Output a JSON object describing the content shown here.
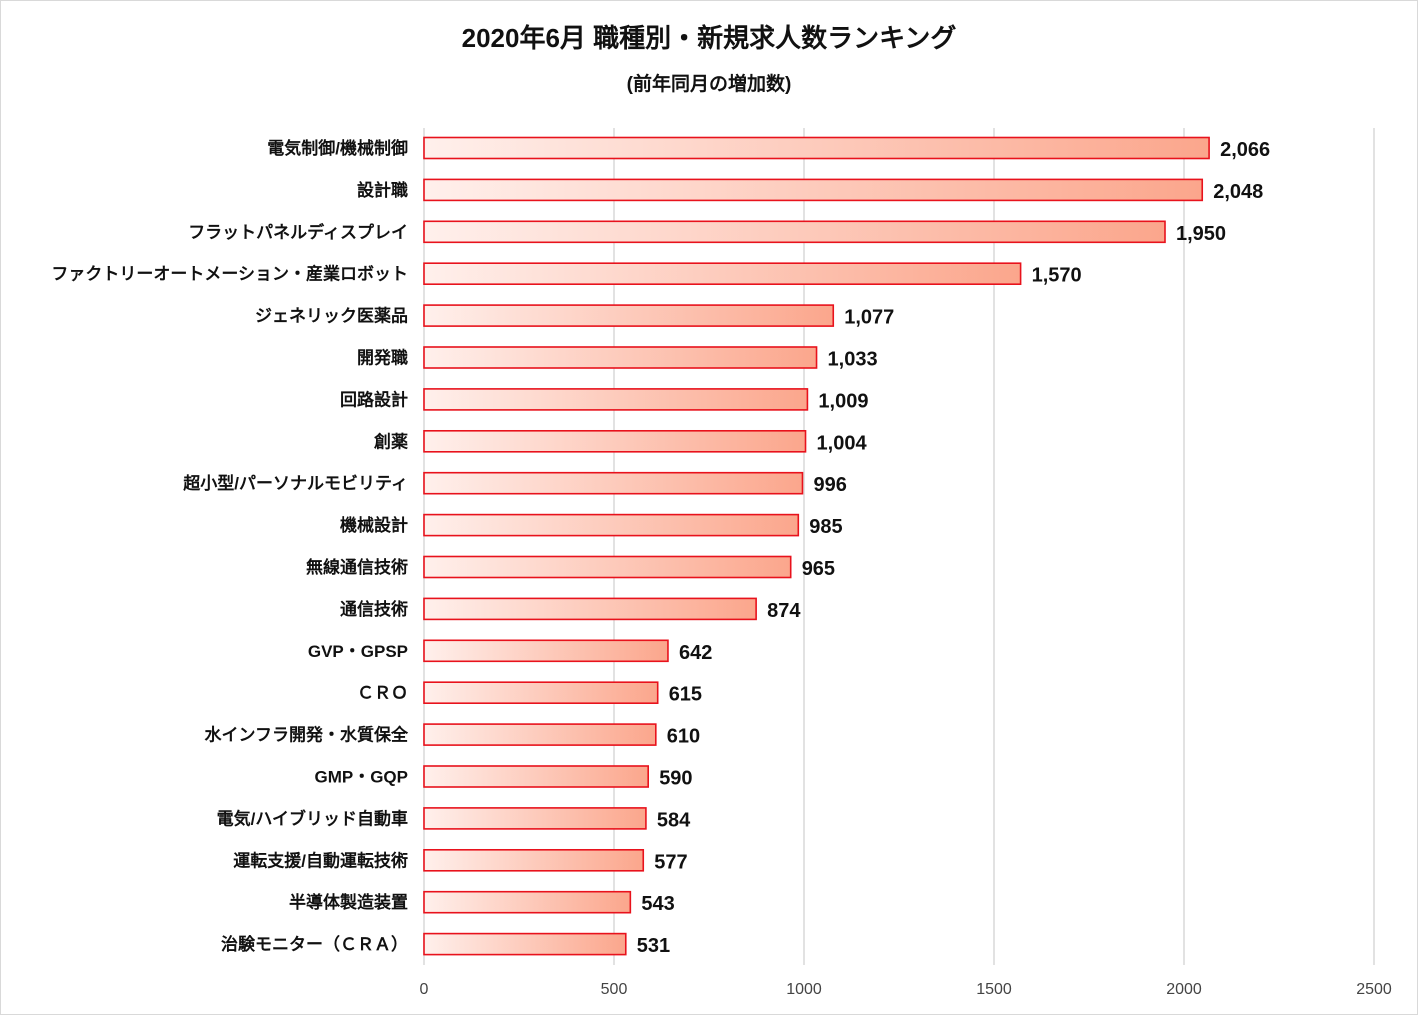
{
  "chart_data": {
    "type": "bar",
    "orientation": "horizontal",
    "title": "2020年6月 職種別・新規求人数ランキング",
    "subtitle": "(前年同月の増加数)",
    "categories": [
      "電気制御/機械制御",
      "設計職",
      "フラットパネルディスプレイ",
      "ファクトリーオートメーション・産業ロボット",
      "ジェネリック医薬品",
      "開発職",
      "回路設計",
      "創薬",
      "超小型/パーソナルモビリティ",
      "機械設計",
      "無線通信技術",
      "通信技術",
      "GVP・GPSP",
      "ＣＲＯ",
      "水インフラ開発・水質保全",
      "GMP・GQP",
      "電気/ハイブリッド自動車",
      "運転支援/自動運転技術",
      "半導体製造装置",
      "治験モニター（ＣＲＡ）"
    ],
    "values": [
      2066,
      2048,
      1950,
      1570,
      1077,
      1033,
      1009,
      1004,
      996,
      985,
      965,
      874,
      642,
      615,
      610,
      590,
      584,
      577,
      543,
      531
    ],
    "value_labels": [
      "2,066",
      "2,048",
      "1,950",
      "1,570",
      "1,077",
      "1,033",
      "1,009",
      "1,004",
      "996",
      "985",
      "965",
      "874",
      "642",
      "615",
      "610",
      "590",
      "584",
      "577",
      "543",
      "531"
    ],
    "xlim": [
      0,
      2500
    ],
    "xticks": [
      0,
      500,
      1000,
      1500,
      2000,
      2500
    ],
    "xtick_labels": [
      "0",
      "500",
      "1000",
      "1500",
      "2000",
      "2500"
    ],
    "grid": true,
    "legend": "none",
    "colors": {
      "bar_fill_start": "#fff0ec",
      "bar_fill_end": "#fba68c",
      "bar_border": "#e8121c",
      "gridline": "#d9d9d9"
    }
  }
}
